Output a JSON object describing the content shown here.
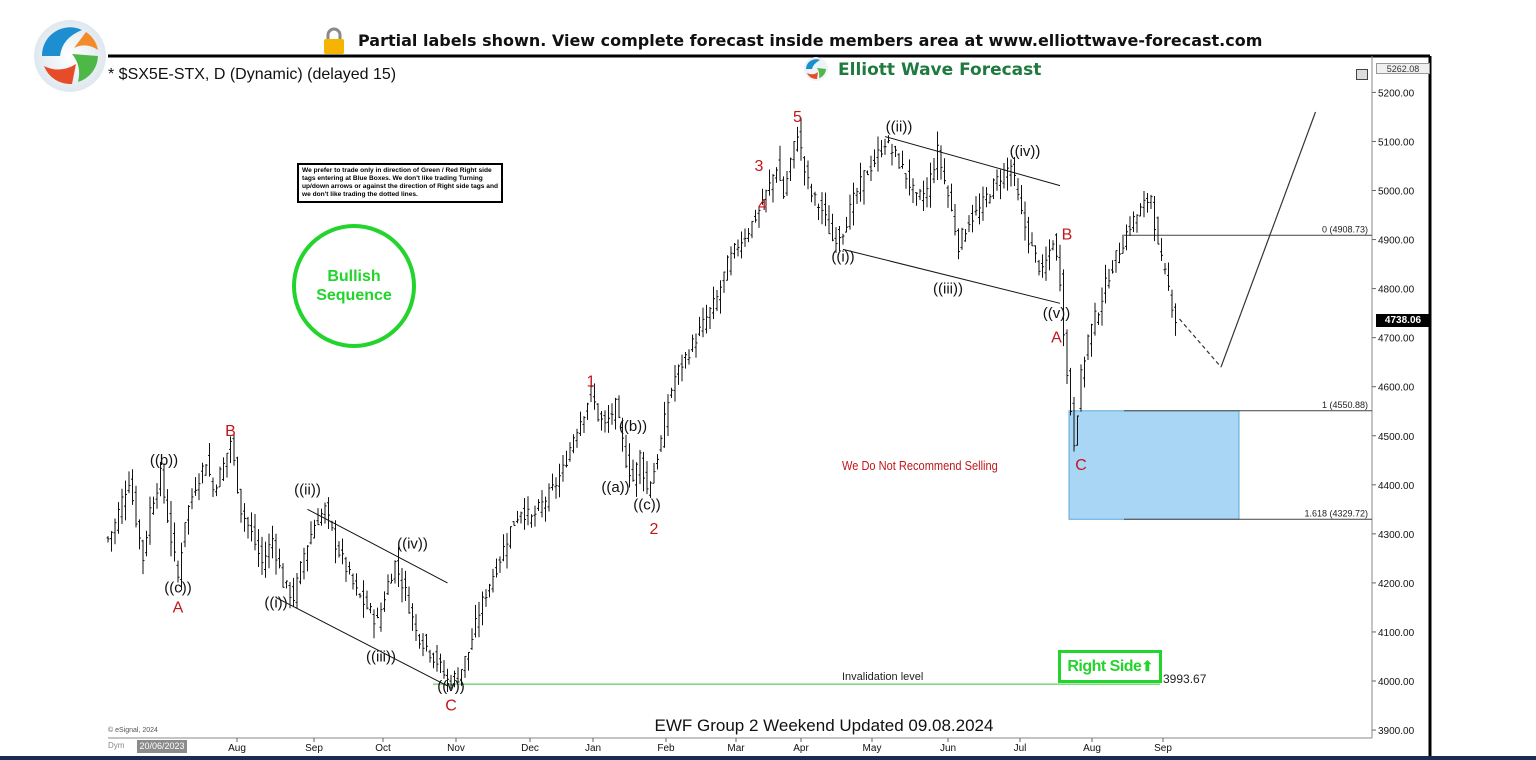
{
  "banner": {
    "text": "Partial labels shown. View complete forecast inside members area at www.elliottwave-forecast.com"
  },
  "chart": {
    "symbol": "* $SX5E-STX, D (Dynamic) (delayed 15)",
    "brand": "Elliott Wave Forecast",
    "trading_note": "We prefer to trade only in direction of Green / Red Right side tags entering at Blue Boxes. We don't like trading Turning up/down arrows or against the direction of Right side tags and we don't like trading the dotted lines.",
    "bullish_label": "Bullish Sequence",
    "footer_title": "EWF Group 2 Weekend Updated 09.08.2024",
    "right_side_label": "Right Side",
    "not_selling_label": "We Do Not Recommend Selling",
    "invalidation_label": "Invalidation level",
    "invalidation_value": "3993.67",
    "current_price_tag": "4738.06",
    "top_price_tag": "5262.08",
    "copyright": "© eSignal, 2024",
    "date_box": "20/06/2023",
    "dym_text": "Dym"
  },
  "colors": {
    "bull_green": "#22d42b",
    "wave_red": "#c0171b",
    "blue_box": "#a9d6f5",
    "candle": "#111111"
  },
  "chart_data": {
    "type": "bar",
    "subtype": "ohlc-price-chart",
    "ylim": [
      3900,
      5262
    ],
    "y_ticks": [
      "5200.00",
      "5100.00",
      "5000.00",
      "4900.00",
      "4800.00",
      "4700.00",
      "4600.00",
      "4500.00",
      "4400.00",
      "4300.00",
      "4200.00",
      "4100.00",
      "4000.00",
      "3900.00"
    ],
    "x_ticks": [
      "Aug",
      "Sep",
      "Oct",
      "Nov",
      "Dec",
      "Jan",
      "Feb",
      "Mar",
      "Apr",
      "May",
      "Jun",
      "Jul",
      "Aug",
      "Sep"
    ],
    "price_path": [
      [
        0,
        4290
      ],
      [
        2,
        4320
      ],
      [
        4,
        4370
      ],
      [
        6,
        4410
      ],
      [
        8,
        4330
      ],
      [
        10,
        4250
      ],
      [
        12,
        4350
      ],
      [
        15,
        4420
      ],
      [
        18,
        4290
      ],
      [
        20,
        4210
      ],
      [
        22,
        4330
      ],
      [
        25,
        4400
      ],
      [
        28,
        4450
      ],
      [
        30,
        4390
      ],
      [
        33,
        4440
      ],
      [
        35,
        4490
      ],
      [
        38,
        4350
      ],
      [
        41,
        4300
      ],
      [
        44,
        4240
      ],
      [
        47,
        4290
      ],
      [
        50,
        4200
      ],
      [
        53,
        4170
      ],
      [
        56,
        4260
      ],
      [
        59,
        4320
      ],
      [
        62,
        4350
      ],
      [
        65,
        4280
      ],
      [
        68,
        4230
      ],
      [
        71,
        4180
      ],
      [
        74,
        4150
      ],
      [
        77,
        4120
      ],
      [
        80,
        4200
      ],
      [
        82,
        4240
      ],
      [
        85,
        4180
      ],
      [
        88,
        4100
      ],
      [
        91,
        4070
      ],
      [
        94,
        4040
      ],
      [
        97,
        4000
      ],
      [
        100,
        4010
      ],
      [
        103,
        4060
      ],
      [
        106,
        4140
      ],
      [
        109,
        4200
      ],
      [
        112,
        4250
      ],
      [
        115,
        4310
      ],
      [
        118,
        4350
      ],
      [
        121,
        4330
      ],
      [
        124,
        4360
      ],
      [
        127,
        4390
      ],
      [
        130,
        4430
      ],
      [
        133,
        4500
      ],
      [
        136,
        4550
      ],
      [
        138,
        4590
      ],
      [
        140,
        4540
      ],
      [
        142,
        4520
      ],
      [
        145,
        4560
      ],
      [
        148,
        4450
      ],
      [
        150,
        4410
      ],
      [
        152,
        4460
      ],
      [
        154,
        4390
      ],
      [
        156,
        4430
      ],
      [
        158,
        4490
      ],
      [
        160,
        4570
      ],
      [
        162,
        4620
      ],
      [
        165,
        4660
      ],
      [
        168,
        4700
      ],
      [
        171,
        4740
      ],
      [
        174,
        4780
      ],
      [
        177,
        4850
      ],
      [
        180,
        4890
      ],
      [
        183,
        4920
      ],
      [
        186,
        4960
      ],
      [
        189,
        5010
      ],
      [
        191,
        5050
      ],
      [
        193,
        4990
      ],
      [
        195,
        5060
      ],
      [
        197,
        5120
      ],
      [
        199,
        5040
      ],
      [
        201,
        4990
      ],
      [
        204,
        4960
      ],
      [
        207,
        4900
      ],
      [
        210,
        4920
      ],
      [
        213,
        4980
      ],
      [
        216,
        5030
      ],
      [
        219,
        5060
      ],
      [
        222,
        5100
      ],
      [
        225,
        5070
      ],
      [
        228,
        5030
      ],
      [
        231,
        4980
      ],
      [
        234,
        5000
      ],
      [
        237,
        5080
      ],
      [
        240,
        4990
      ],
      [
        243,
        4890
      ],
      [
        246,
        4940
      ],
      [
        249,
        4960
      ],
      [
        252,
        5000
      ],
      [
        255,
        5030
      ],
      [
        258,
        5050
      ],
      [
        261,
        4950
      ],
      [
        264,
        4880
      ],
      [
        267,
        4830
      ],
      [
        270,
        4900
      ],
      [
        272,
        4820
      ],
      [
        274,
        4620
      ],
      [
        276,
        4490
      ],
      [
        278,
        4620
      ],
      [
        280,
        4700
      ],
      [
        283,
        4760
      ],
      [
        286,
        4830
      ],
      [
        289,
        4880
      ],
      [
        292,
        4930
      ],
      [
        295,
        4960
      ],
      [
        298,
        4990
      ],
      [
        300,
        4880
      ],
      [
        303,
        4800
      ],
      [
        305,
        4738
      ]
    ],
    "projection_solid": [
      [
        305,
        4738
      ],
      [
        318,
        4640
      ],
      [
        345,
        5160
      ]
    ],
    "projection_dashed_from_index": 0,
    "fib_levels": [
      {
        "label": "0 (4908.73)",
        "value": 4908.73
      },
      {
        "label": "1 (4550.88)",
        "value": 4550.88
      },
      {
        "label": "1.618 (4329.72)",
        "value": 4329.72
      }
    ],
    "blue_box": {
      "y_top": 4550.88,
      "y_bottom": 4329.72
    },
    "invalidation": 3993.67,
    "wave_labels_black": [
      {
        "text": "((b))",
        "x": 16,
        "y": 4440
      },
      {
        "text": "((c))",
        "x": 20,
        "y": 4180
      },
      {
        "text": "((ii))",
        "x": 57,
        "y": 4380
      },
      {
        "text": "((i))",
        "x": 48,
        "y": 4150
      },
      {
        "text": "((iv))",
        "x": 87,
        "y": 4270
      },
      {
        "text": "((iii))",
        "x": 78,
        "y": 4040
      },
      {
        "text": "((v))",
        "x": 98,
        "y": 3980
      },
      {
        "text": "((b))",
        "x": 150,
        "y": 4510
      },
      {
        "text": "((a))",
        "x": 145,
        "y": 4385
      },
      {
        "text": "((c))",
        "x": 154,
        "y": 4350
      },
      {
        "text": "((ii))",
        "x": 226,
        "y": 5120
      },
      {
        "text": "((i))",
        "x": 210,
        "y": 4855
      },
      {
        "text": "((iii))",
        "x": 240,
        "y": 4790
      },
      {
        "text": "((iv))",
        "x": 262,
        "y": 5070
      },
      {
        "text": "((v))",
        "x": 271,
        "y": 4740
      }
    ],
    "wave_labels_red": [
      {
        "text": "A",
        "x": 20,
        "y": 4140
      },
      {
        "text": "B",
        "x": 35,
        "y": 4500
      },
      {
        "text": "C",
        "x": 98,
        "y": 3940
      },
      {
        "text": "1",
        "x": 138,
        "y": 4600
      },
      {
        "text": "2",
        "x": 156,
        "y": 4300
      },
      {
        "text": "3",
        "x": 186,
        "y": 5040
      },
      {
        "text": "4",
        "x": 187,
        "y": 4960
      },
      {
        "text": "5",
        "x": 197,
        "y": 5140
      },
      {
        "text": "B",
        "x": 274,
        "y": 4900
      },
      {
        "text": "A",
        "x": 271,
        "y": 4690
      },
      {
        "text": "C",
        "x": 278,
        "y": 4430
      }
    ],
    "channels": [
      [
        [
          57,
          4350
        ],
        [
          97,
          4200
        ]
      ],
      [
        [
          48,
          4170
        ],
        [
          97,
          3990
        ]
      ],
      [
        [
          222,
          5110
        ],
        [
          272,
          5010
        ]
      ],
      [
        [
          210,
          4880
        ],
        [
          272,
          4770
        ]
      ]
    ]
  }
}
